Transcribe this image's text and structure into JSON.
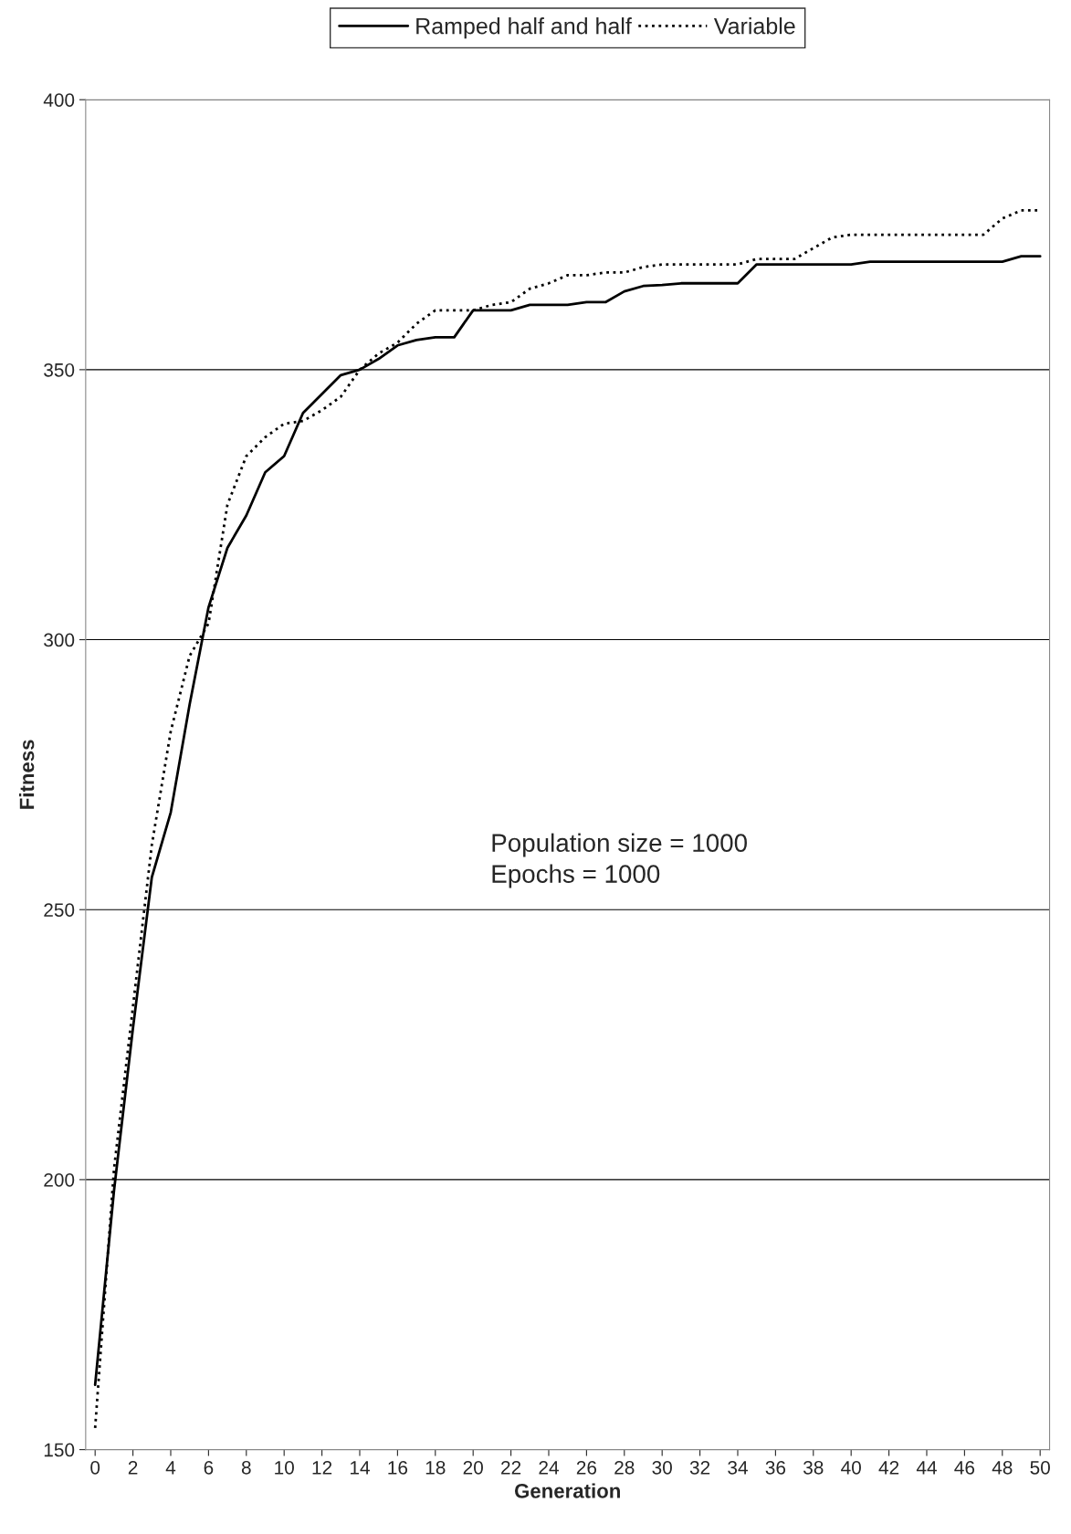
{
  "chart_data": {
    "type": "line",
    "xlabel": "Generation",
    "ylabel": "Fitness",
    "x": [
      0,
      1,
      2,
      3,
      4,
      5,
      6,
      7,
      8,
      9,
      10,
      11,
      12,
      13,
      14,
      15,
      16,
      17,
      18,
      19,
      20,
      21,
      22,
      23,
      24,
      25,
      26,
      27,
      28,
      29,
      30,
      31,
      32,
      33,
      34,
      35,
      36,
      37,
      38,
      39,
      40,
      41,
      42,
      43,
      44,
      45,
      46,
      47,
      48,
      49,
      50
    ],
    "series": [
      {
        "name": "Ramped half and half",
        "color": "#000000",
        "line_style": "solid",
        "values": [
          162,
          198,
          228,
          256,
          268,
          288,
          306,
          317,
          323,
          331,
          334,
          342,
          345.5,
          349,
          350,
          352,
          354.5,
          355.5,
          356,
          356,
          361,
          361,
          361,
          362,
          362,
          362,
          362.5,
          362.5,
          364.5,
          365.5,
          365.7,
          366,
          366,
          366,
          366,
          369.5,
          369.5,
          369.5,
          369.5,
          369.5,
          369.5,
          370,
          370,
          370,
          370,
          370,
          370,
          370,
          370,
          371,
          371
        ]
      },
      {
        "name": "Variable",
        "color": "#000000",
        "line_style": "dotted",
        "values": [
          154,
          202,
          232,
          262,
          283,
          297,
          303,
          325,
          334,
          337.5,
          340,
          340.5,
          342.5,
          345,
          350,
          353,
          355,
          358.5,
          361,
          361,
          361,
          362,
          362.5,
          365,
          366,
          367.5,
          367.5,
          368,
          368,
          369,
          369.5,
          369.5,
          369.5,
          369.5,
          369.5,
          370.5,
          370.5,
          370.5,
          372.5,
          374.5,
          375,
          375,
          375,
          375,
          375,
          375,
          375,
          375,
          378,
          379.5,
          379.5
        ]
      }
    ],
    "xlim": [
      -0.5,
      50.5
    ],
    "xticks": [
      0,
      2,
      4,
      6,
      8,
      10,
      12,
      14,
      16,
      18,
      20,
      22,
      24,
      26,
      28,
      30,
      32,
      34,
      36,
      38,
      40,
      42,
      44,
      46,
      48,
      50
    ],
    "ylim": [
      150,
      400
    ],
    "yticks": [
      150,
      200,
      250,
      300,
      350,
      400
    ],
    "grid": "y",
    "legend": "top",
    "annotations": [
      "Population size = 1000\nEpochs = 1000"
    ]
  }
}
